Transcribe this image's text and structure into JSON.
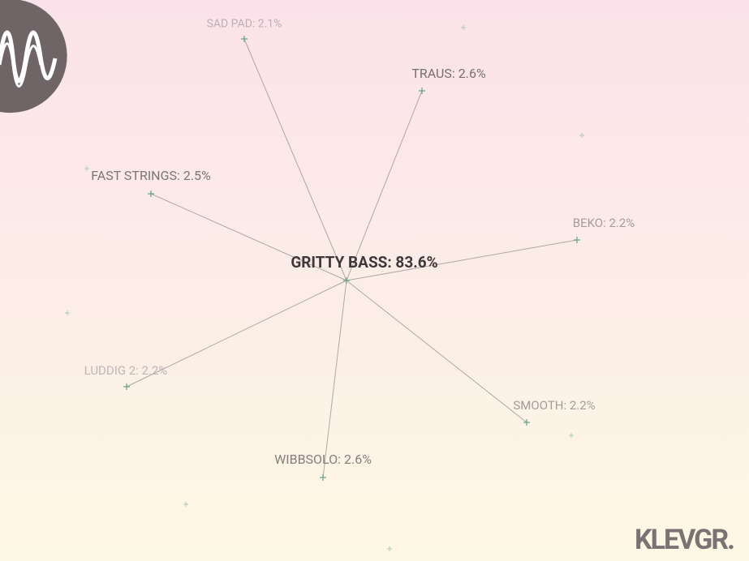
{
  "center": {
    "label": "GRITTY BASS: 83.6%"
  },
  "nodes": [
    {
      "label": "SAD PAD: 2.1%"
    },
    {
      "label": "TRAUS: 2.6%"
    },
    {
      "label": "FAST STRINGS: 2.5%"
    },
    {
      "label": "BEKO: 2.2%"
    },
    {
      "label": "LUDDIG 2: 2.2%"
    },
    {
      "label": "SMOOTH: 2.2%"
    },
    {
      "label": "WIBBSOLO: 2.6%"
    }
  ],
  "brand": "KLEVGR."
}
